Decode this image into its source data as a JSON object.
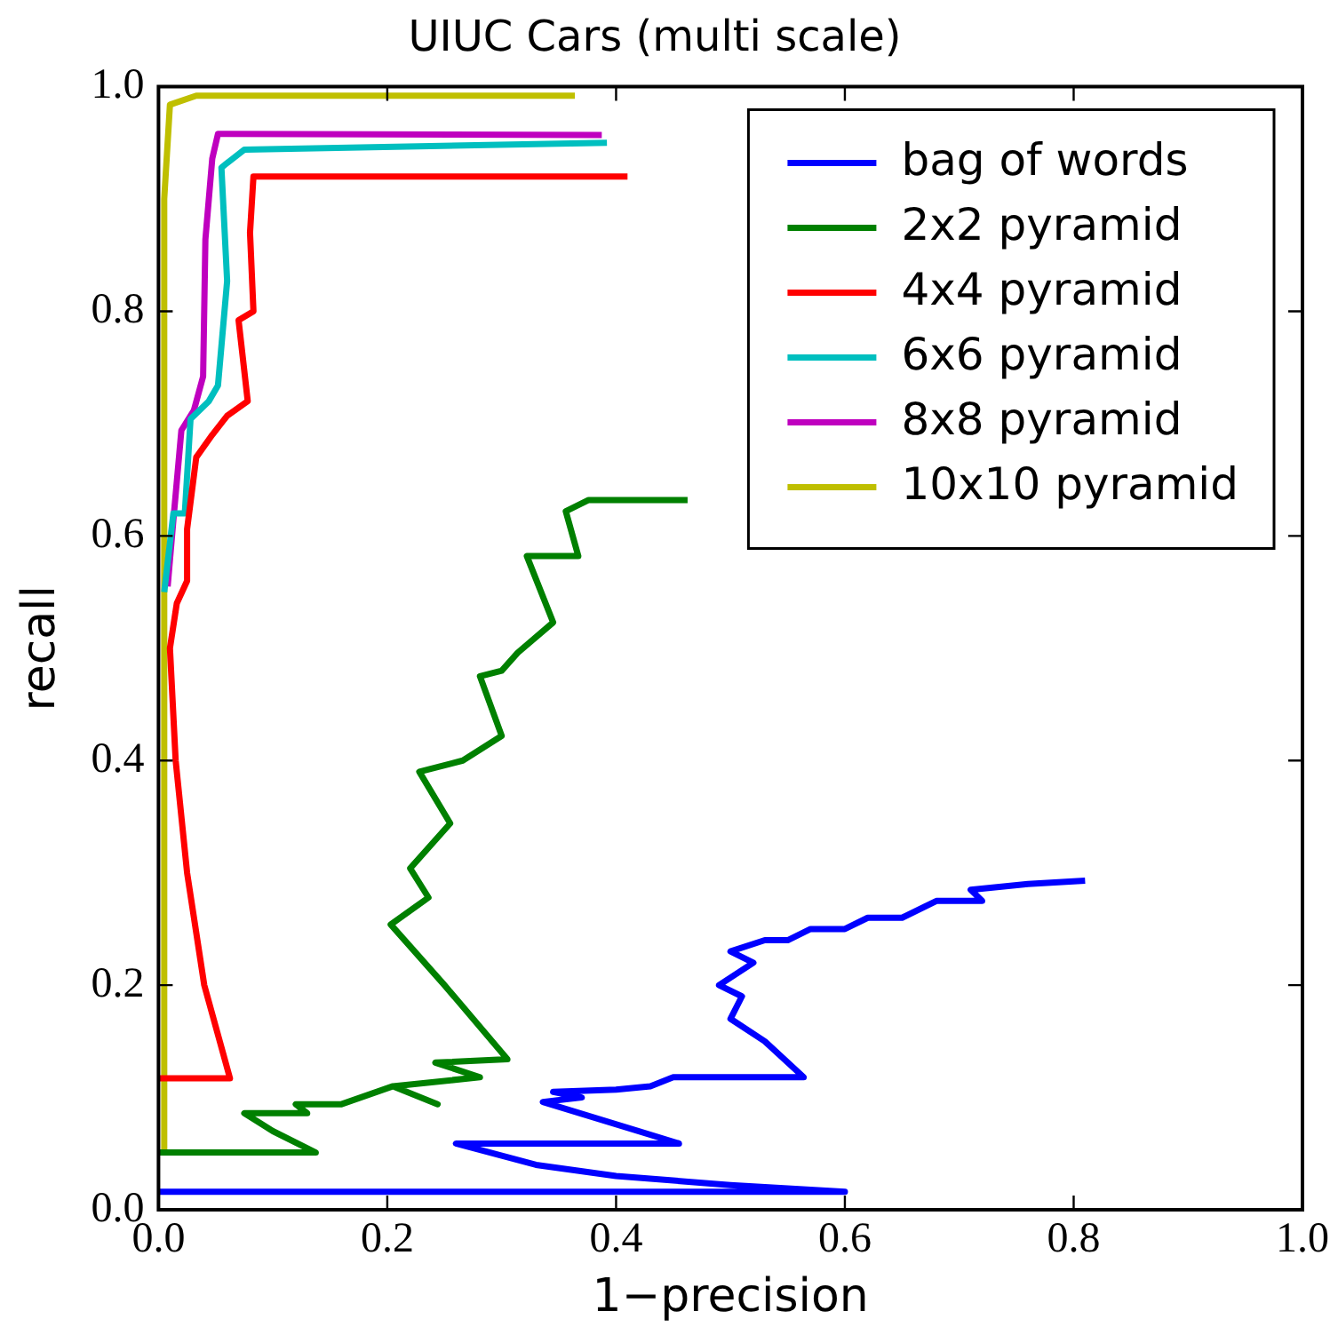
{
  "chart_data": {
    "type": "line",
    "title": "UIUC Cars (multi scale)",
    "xlabel": "1−precision",
    "ylabel": "recall",
    "xlim": [
      0,
      1
    ],
    "ylim": [
      0,
      1
    ],
    "xticks": [
      {
        "value": 0,
        "label": "0.0"
      },
      {
        "value": 0.2,
        "label": "0.2"
      },
      {
        "value": 0.4,
        "label": "0.4"
      },
      {
        "value": 0.6,
        "label": "0.6"
      },
      {
        "value": 0.8,
        "label": "0.8"
      },
      {
        "value": 1,
        "label": "1.0"
      }
    ],
    "yticks": [
      {
        "value": 0,
        "label": "0.0"
      },
      {
        "value": 0.2,
        "label": "0.2"
      },
      {
        "value": 0.4,
        "label": "0.4"
      },
      {
        "value": 0.6,
        "label": "0.6"
      },
      {
        "value": 0.8,
        "label": "0.8"
      },
      {
        "value": 1,
        "label": "1.0"
      }
    ],
    "grid": false,
    "legend": "top right",
    "marker": "none",
    "line_style": "solid",
    "series": [
      {
        "name": "bag of words",
        "color": "#0000ff",
        "x": [
          0,
          0.6,
          0.5,
          0.4,
          0.33,
          0.26,
          0.455,
          0.336,
          0.37,
          0.345,
          0.4,
          0.43,
          0.45,
          0.5,
          0.564,
          0.53,
          0.5,
          0.51,
          0.49,
          0.52,
          0.5,
          0.53,
          0.55,
          0.57,
          0.6,
          0.62,
          0.65,
          0.68,
          0.72,
          0.71,
          0.76,
          0.81
        ],
        "values": [
          0.016,
          0.016,
          0.022,
          0.03,
          0.04,
          0.059,
          0.059,
          0.096,
          0.1,
          0.105,
          0.107,
          0.11,
          0.118,
          0.118,
          0.118,
          0.15,
          0.17,
          0.19,
          0.2,
          0.22,
          0.23,
          0.24,
          0.24,
          0.25,
          0.25,
          0.26,
          0.26,
          0.275,
          0.275,
          0.285,
          0.29,
          0.293
        ]
      },
      {
        "name": "2x2 pyramid",
        "color": "#008000",
        "x": [
          0,
          0.1375,
          0.1,
          0.075,
          0.13,
          0.12,
          0.16,
          0.205,
          0.244,
          0.205,
          0.281,
          0.242,
          0.305,
          0.25,
          0.203,
          0.236,
          0.22,
          0.255,
          0.228,
          0.266,
          0.3,
          0.281,
          0.3,
          0.314,
          0.345,
          0.322,
          0.367,
          0.356,
          0.376,
          0.4625
        ],
        "values": [
          0.051,
          0.051,
          0.07,
          0.086,
          0.086,
          0.094,
          0.094,
          0.11,
          0.094,
          0.11,
          0.118,
          0.131,
          0.134,
          0.2,
          0.254,
          0.278,
          0.304,
          0.344,
          0.39,
          0.4,
          0.422,
          0.475,
          0.48,
          0.496,
          0.523,
          0.582,
          0.582,
          0.622,
          0.632,
          0.632
        ]
      },
      {
        "name": "4x4 pyramid",
        "color": "#ff0000",
        "x": [
          0,
          0.0625,
          0.04,
          0.025,
          0.015,
          0.01,
          0.016,
          0.025,
          0.025,
          0.033,
          0.047,
          0.06,
          0.078,
          0.07,
          0.083,
          0.08,
          0.083,
          0.41
        ],
        "values": [
          0.117,
          0.117,
          0.2,
          0.3,
          0.4,
          0.5,
          0.54,
          0.56,
          0.606,
          0.67,
          0.69,
          0.707,
          0.72,
          0.792,
          0.8,
          0.87,
          0.92,
          0.92
        ]
      },
      {
        "name": "6x6 pyramid",
        "color": "#00bfbf",
        "x": [
          0.005,
          0.013,
          0.023,
          0.028,
          0.044,
          0.052,
          0.06,
          0.055,
          0.075,
          0.392
        ],
        "values": [
          0.55,
          0.62,
          0.62,
          0.704,
          0.72,
          0.734,
          0.827,
          0.928,
          0.944,
          0.95
        ]
      },
      {
        "name": "8x8 pyramid",
        "color": "#bf00bf",
        "x": [
          0.008,
          0.013,
          0.02,
          0.031,
          0.039,
          0.041,
          0.047,
          0.052,
          0.3875
        ],
        "values": [
          0.555,
          0.614,
          0.694,
          0.712,
          0.742,
          0.864,
          0.936,
          0.958,
          0.957
        ]
      },
      {
        "name": "10x10 pyramid",
        "color": "#bfbf00",
        "x": [
          0.005,
          0.005,
          0.01,
          0.033,
          0.364
        ],
        "values": [
          0.05,
          0.9,
          0.984,
          0.992,
          0.992
        ]
      }
    ]
  }
}
